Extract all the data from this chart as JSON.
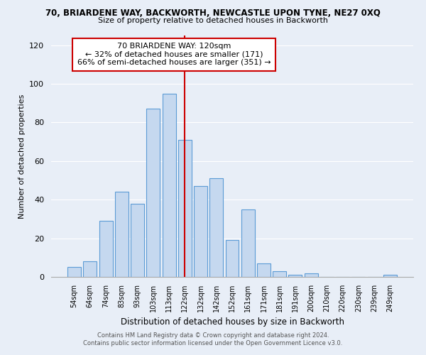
{
  "title_line1": "70, BRIARDENE WAY, BACKWORTH, NEWCASTLE UPON TYNE, NE27 0XQ",
  "title_line2": "Size of property relative to detached houses in Backworth",
  "xlabel": "Distribution of detached houses by size in Backworth",
  "ylabel": "Number of detached properties",
  "bar_labels": [
    "54sqm",
    "64sqm",
    "74sqm",
    "83sqm",
    "93sqm",
    "103sqm",
    "113sqm",
    "122sqm",
    "132sqm",
    "142sqm",
    "152sqm",
    "161sqm",
    "171sqm",
    "181sqm",
    "191sqm",
    "200sqm",
    "210sqm",
    "220sqm",
    "230sqm",
    "239sqm",
    "249sqm"
  ],
  "bar_heights": [
    5,
    8,
    29,
    44,
    38,
    87,
    95,
    71,
    47,
    51,
    19,
    35,
    7,
    3,
    1,
    2,
    0,
    0,
    0,
    0,
    1
  ],
  "bar_color": "#c5d8ef",
  "bar_edge_color": "#5b9bd5",
  "vline_color": "#cc0000",
  "annotation_line1": "70 BRIARDENE WAY: 120sqm",
  "annotation_line2": "← 32% of detached houses are smaller (171)",
  "annotation_line3": "66% of semi-detached houses are larger (351) →",
  "annotation_box_color": "white",
  "annotation_box_edge": "#cc0000",
  "ylim": [
    0,
    125
  ],
  "yticks": [
    0,
    20,
    40,
    60,
    80,
    100,
    120
  ],
  "footer_line1": "Contains HM Land Registry data © Crown copyright and database right 2024.",
  "footer_line2": "Contains public sector information licensed under the Open Government Licence v3.0.",
  "bg_color": "#e8eef7"
}
